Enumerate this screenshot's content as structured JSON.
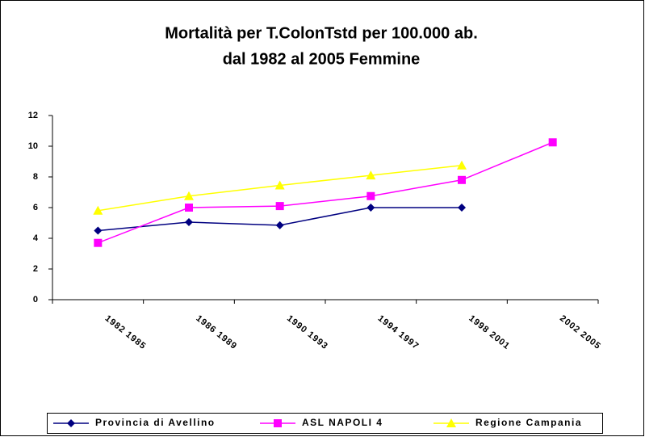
{
  "chart_data": {
    "type": "line",
    "title": [
      "Mortalità per T.ColonTstd per 100.000 ab.",
      "dal 1982 al 2005 Femmine"
    ],
    "categories": [
      "1982    1985",
      "1986    1989",
      "1990    1993",
      "1994    1997",
      "1998    2001",
      "2002    2005"
    ],
    "series": [
      {
        "name": "Provincia di Avellino",
        "color": "#000080",
        "marker": "diamond",
        "values": [
          4.5,
          5.05,
          4.85,
          6.0,
          6.0,
          null
        ]
      },
      {
        "name": "ASL NAPOLI 4",
        "color": "#ff00ff",
        "marker": "square",
        "values": [
          3.7,
          6.0,
          6.1,
          6.75,
          7.8,
          10.25
        ]
      },
      {
        "name": "Regione Campania",
        "color": "#ffff00",
        "marker": "triangle",
        "values": [
          5.8,
          6.75,
          7.45,
          8.1,
          8.75,
          null
        ]
      }
    ],
    "ylim": [
      0,
      12
    ],
    "yticks": [
      0,
      2,
      4,
      6,
      8,
      10,
      12
    ],
    "grid": false,
    "legend": "bottom"
  }
}
